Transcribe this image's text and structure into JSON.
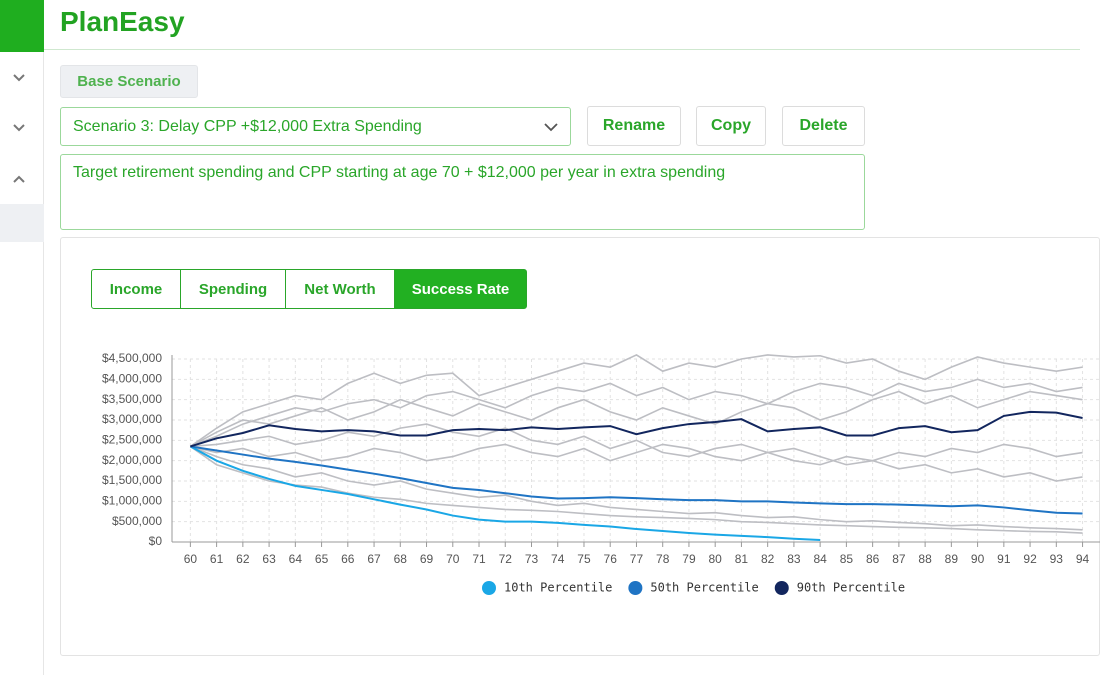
{
  "header": {
    "title": "PlanEasy"
  },
  "scenario": {
    "base_button": "Base Scenario",
    "select": "Scenario 3: Delay CPP +$12,000 Extra Spending",
    "buttons": [
      "Rename",
      "Copy",
      "Delete"
    ],
    "description": "Target retirement spending and CPP starting at age 70 + $12,000 per year in extra spending"
  },
  "tabs": {
    "items": [
      "Income",
      "Spending",
      "Net Worth",
      "Success Rate"
    ],
    "active": 3
  },
  "chart_data": {
    "type": "line",
    "x": [
      60,
      61,
      62,
      63,
      64,
      65,
      66,
      67,
      68,
      69,
      70,
      71,
      72,
      73,
      74,
      75,
      76,
      77,
      78,
      79,
      80,
      81,
      82,
      83,
      84,
      85,
      86,
      87,
      88,
      89,
      90,
      91,
      92,
      93,
      94
    ],
    "xlim": [
      59.3,
      95
    ],
    "ylim": [
      0,
      4500000
    ],
    "yticks": [
      {
        "value": 0,
        "label": "$0"
      },
      {
        "value": 500000,
        "label": "$500,000"
      },
      {
        "value": 1000000,
        "label": "$1,000,000"
      },
      {
        "value": 1500000,
        "label": "$1,500,000"
      },
      {
        "value": 2000000,
        "label": "$2,000,000"
      },
      {
        "value": 2500000,
        "label": "$2,500,000"
      },
      {
        "value": 3000000,
        "label": "$3,000,000"
      },
      {
        "value": 3500000,
        "label": "$3,500,000"
      },
      {
        "value": 4000000,
        "label": "$4,000,000"
      },
      {
        "value": 4500000,
        "label": "$4,500,000"
      }
    ],
    "grid": true,
    "legend": "bottom",
    "series": [
      {
        "color": "#bdbec3",
        "values": [
          2350000,
          2800000,
          3200000,
          3400000,
          3600000,
          3500000,
          3900000,
          4150000,
          3900000,
          4100000,
          4150000,
          3600000,
          3800000,
          4000000,
          4200000,
          4400000,
          4300000,
          4600000,
          4200000,
          4400000,
          4300000,
          4500000,
          4600000,
          4550000,
          4580000,
          4400000,
          4500000,
          4200000,
          4000000,
          4300000,
          4550000,
          4400000,
          4300000,
          4200000,
          4300000
        ]
      },
      {
        "color": "#bdbec3",
        "values": [
          2350000,
          2600000,
          2900000,
          3100000,
          3300000,
          3200000,
          3400000,
          3500000,
          3300000,
          3600000,
          3700000,
          3500000,
          3300000,
          3600000,
          3800000,
          3700000,
          3900000,
          3600000,
          3800000,
          3500000,
          3700000,
          3600000,
          3400000,
          3700000,
          3900000,
          3800000,
          3600000,
          3900000,
          3700000,
          3800000,
          4000000,
          3800000,
          3900000,
          3700000,
          3800000
        ]
      },
      {
        "color": "#bdbec3",
        "values": [
          2350000,
          2700000,
          3000000,
          2900000,
          3100000,
          3300000,
          3000000,
          3200000,
          3500000,
          3300000,
          3100000,
          3400000,
          3200000,
          3000000,
          3300000,
          3500000,
          3200000,
          3000000,
          3300000,
          3100000,
          2900000,
          3200000,
          3400000,
          3300000,
          3000000,
          3200000,
          3500000,
          3700000,
          3400000,
          3600000,
          3300000,
          3500000,
          3700000,
          3600000,
          3500000
        ]
      },
      {
        "color": "#bdbec3",
        "values": [
          2350000,
          2400000,
          2500000,
          2600000,
          2400000,
          2500000,
          2700000,
          2600000,
          2800000,
          2900000,
          2700000,
          2600000,
          2800000,
          2500000,
          2400000,
          2600000,
          2300000,
          2500000,
          2200000,
          2100000,
          2300000,
          2400000,
          2200000,
          2000000,
          1900000,
          2100000,
          2000000,
          1800000,
          1900000,
          1700000,
          1800000,
          1600000,
          1700000,
          1500000,
          1600000
        ]
      },
      {
        "color": "#bdbec3",
        "values": [
          2350000,
          2200000,
          2300000,
          2100000,
          2200000,
          2000000,
          2100000,
          2300000,
          2200000,
          2000000,
          2100000,
          2300000,
          2400000,
          2200000,
          2100000,
          2300000,
          2000000,
          2200000,
          2400000,
          2300000,
          2100000,
          2000000,
          2200000,
          2300000,
          2100000,
          1900000,
          2000000,
          2200000,
          2100000,
          2300000,
          2200000,
          2400000,
          2300000,
          2100000,
          2200000
        ]
      },
      {
        "color": "#bdbec3",
        "values": [
          2350000,
          2100000,
          1900000,
          1800000,
          1600000,
          1700000,
          1500000,
          1400000,
          1500000,
          1300000,
          1200000,
          1100000,
          1150000,
          1000000,
          900000,
          950000,
          850000,
          800000,
          750000,
          700000,
          720000,
          650000,
          600000,
          620000,
          550000,
          500000,
          520000,
          480000,
          450000,
          400000,
          420000,
          380000,
          350000,
          330000,
          300000
        ]
      },
      {
        "color": "#bdbec3",
        "values": [
          2350000,
          1900000,
          1700000,
          1500000,
          1400000,
          1350000,
          1200000,
          1100000,
          1050000,
          950000,
          900000,
          850000,
          800000,
          780000,
          750000,
          700000,
          650000,
          620000,
          600000,
          580000,
          550000,
          500000,
          480000,
          450000,
          420000,
          400000,
          380000,
          360000,
          350000,
          330000,
          300000,
          280000,
          260000,
          250000,
          220000
        ]
      },
      {
        "name": "10th Percentile",
        "color": "#1aa7e6",
        "values": [
          2350000,
          2000000,
          1750000,
          1550000,
          1380000,
          1280000,
          1180000,
          1050000,
          920000,
          800000,
          650000,
          550000,
          500000,
          500000,
          470000,
          420000,
          380000,
          320000,
          270000,
          220000,
          180000,
          150000,
          120000,
          80000,
          50000,
          null,
          null,
          null,
          null,
          null,
          null,
          null,
          null,
          null,
          null
        ]
      },
      {
        "name": "50th Percentile",
        "color": "#1f74c4",
        "values": [
          2350000,
          2250000,
          2150000,
          2050000,
          1970000,
          1880000,
          1780000,
          1680000,
          1570000,
          1450000,
          1330000,
          1280000,
          1200000,
          1120000,
          1070000,
          1080000,
          1100000,
          1080000,
          1050000,
          1030000,
          1030000,
          1000000,
          1000000,
          970000,
          950000,
          930000,
          930000,
          920000,
          900000,
          880000,
          900000,
          850000,
          780000,
          720000,
          700000
        ]
      },
      {
        "name": "90th Percentile",
        "color": "#12265e",
        "values": [
          2350000,
          2550000,
          2680000,
          2870000,
          2780000,
          2720000,
          2750000,
          2720000,
          2620000,
          2620000,
          2750000,
          2780000,
          2750000,
          2820000,
          2780000,
          2820000,
          2850000,
          2650000,
          2800000,
          2900000,
          2950000,
          3020000,
          2720000,
          2780000,
          2820000,
          2620000,
          2620000,
          2800000,
          2850000,
          2700000,
          2750000,
          3100000,
          3200000,
          3180000,
          3050000
        ]
      }
    ]
  }
}
